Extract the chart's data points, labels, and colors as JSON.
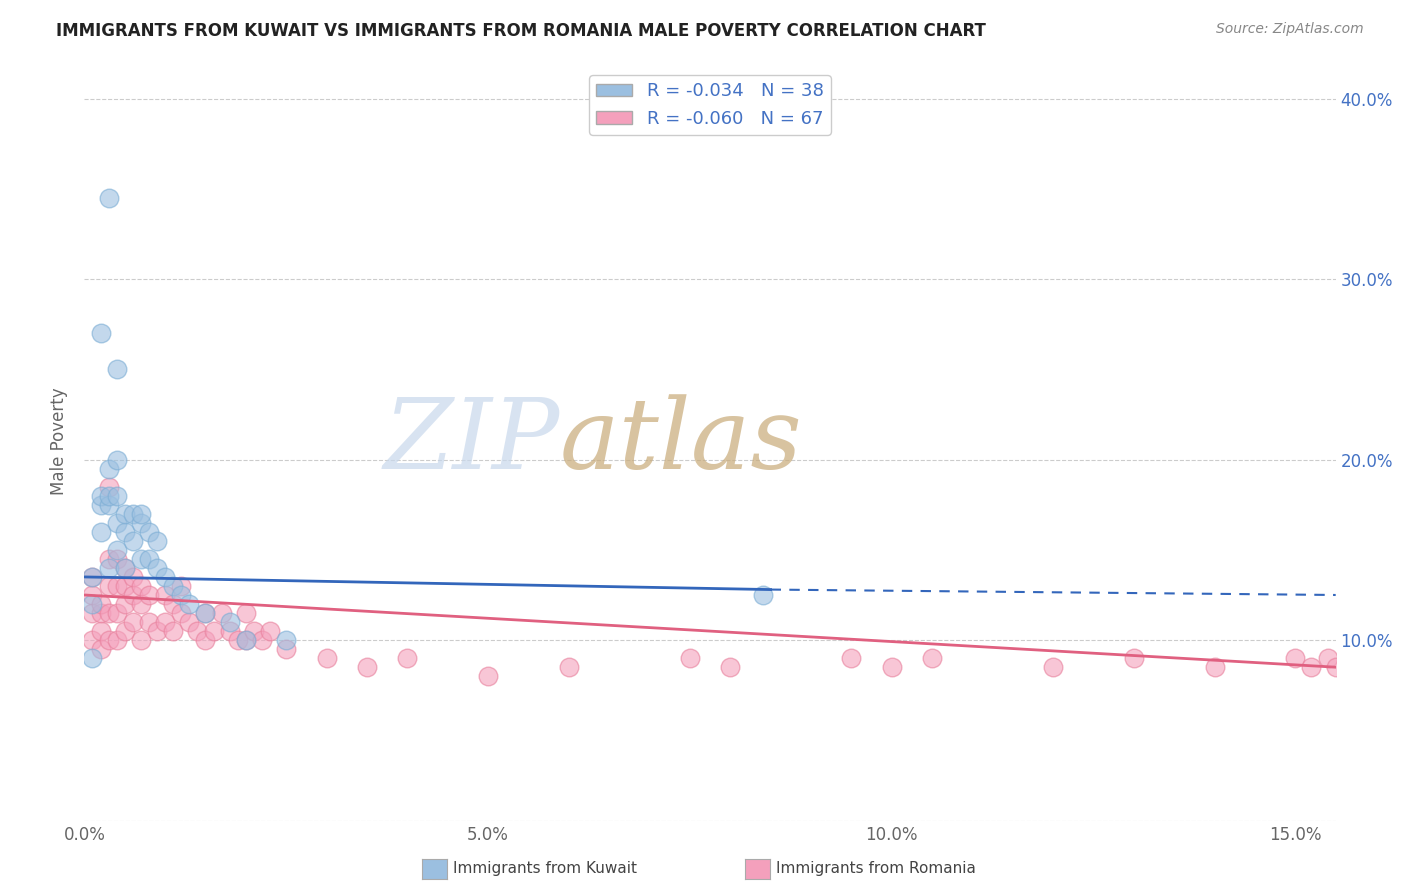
{
  "title": "IMMIGRANTS FROM KUWAIT VS IMMIGRANTS FROM ROMANIA MALE POVERTY CORRELATION CHART",
  "source": "Source: ZipAtlas.com",
  "ylabel": "Male Poverty",
  "xlim": [
    0.0,
    0.155
  ],
  "ylim": [
    0.0,
    0.42
  ],
  "xticks": [
    0.0,
    0.05,
    0.1,
    0.15
  ],
  "xticklabels": [
    "0.0%",
    "5.0%",
    "10.0%",
    "15.0%"
  ],
  "yticks_right": [
    0.1,
    0.2,
    0.3,
    0.4
  ],
  "yticklabels_right": [
    "10.0%",
    "20.0%",
    "30.0%",
    "40.0%"
  ],
  "kuwait_color": "#9bbfe0",
  "romania_color": "#f4a0bc",
  "kuwait_edge_color": "#7badd4",
  "romania_edge_color": "#e8809c",
  "kuwait_line_color": "#3366bb",
  "romania_line_color": "#e06080",
  "kuwait_R": -0.034,
  "kuwait_N": 38,
  "romania_R": -0.06,
  "romania_N": 67,
  "legend_text_color": "#4472c4",
  "kuwait_line_x_solid_end": 0.085,
  "kuwait_line_x_dashed_end": 0.155,
  "kuwait_x": [
    0.001,
    0.001,
    0.001,
    0.002,
    0.002,
    0.002,
    0.003,
    0.003,
    0.003,
    0.003,
    0.004,
    0.004,
    0.004,
    0.004,
    0.005,
    0.005,
    0.005,
    0.006,
    0.006,
    0.007,
    0.007,
    0.007,
    0.008,
    0.008,
    0.009,
    0.009,
    0.01,
    0.011,
    0.012,
    0.013,
    0.015,
    0.018,
    0.02,
    0.025,
    0.084,
    0.002,
    0.003,
    0.004
  ],
  "kuwait_y": [
    0.135,
    0.12,
    0.09,
    0.16,
    0.175,
    0.18,
    0.14,
    0.175,
    0.18,
    0.195,
    0.15,
    0.165,
    0.18,
    0.2,
    0.14,
    0.16,
    0.17,
    0.155,
    0.17,
    0.145,
    0.165,
    0.17,
    0.145,
    0.16,
    0.14,
    0.155,
    0.135,
    0.13,
    0.125,
    0.12,
    0.115,
    0.11,
    0.1,
    0.1,
    0.125,
    0.27,
    0.345,
    0.25
  ],
  "romania_x": [
    0.001,
    0.001,
    0.001,
    0.001,
    0.002,
    0.002,
    0.002,
    0.002,
    0.003,
    0.003,
    0.003,
    0.003,
    0.004,
    0.004,
    0.004,
    0.004,
    0.005,
    0.005,
    0.005,
    0.005,
    0.006,
    0.006,
    0.006,
    0.007,
    0.007,
    0.007,
    0.008,
    0.008,
    0.009,
    0.01,
    0.01,
    0.011,
    0.011,
    0.012,
    0.012,
    0.013,
    0.014,
    0.015,
    0.015,
    0.016,
    0.017,
    0.018,
    0.019,
    0.02,
    0.02,
    0.021,
    0.022,
    0.023,
    0.025,
    0.03,
    0.035,
    0.04,
    0.05,
    0.06,
    0.075,
    0.08,
    0.095,
    0.1,
    0.105,
    0.12,
    0.13,
    0.14,
    0.15,
    0.152,
    0.154,
    0.155,
    0.003
  ],
  "romania_y": [
    0.1,
    0.115,
    0.125,
    0.135,
    0.095,
    0.105,
    0.115,
    0.12,
    0.1,
    0.115,
    0.13,
    0.145,
    0.1,
    0.115,
    0.13,
    0.145,
    0.105,
    0.12,
    0.13,
    0.14,
    0.11,
    0.125,
    0.135,
    0.1,
    0.12,
    0.13,
    0.11,
    0.125,
    0.105,
    0.11,
    0.125,
    0.105,
    0.12,
    0.115,
    0.13,
    0.11,
    0.105,
    0.1,
    0.115,
    0.105,
    0.115,
    0.105,
    0.1,
    0.1,
    0.115,
    0.105,
    0.1,
    0.105,
    0.095,
    0.09,
    0.085,
    0.09,
    0.08,
    0.085,
    0.09,
    0.085,
    0.09,
    0.085,
    0.09,
    0.085,
    0.09,
    0.085,
    0.09,
    0.085,
    0.09,
    0.085,
    0.185
  ]
}
